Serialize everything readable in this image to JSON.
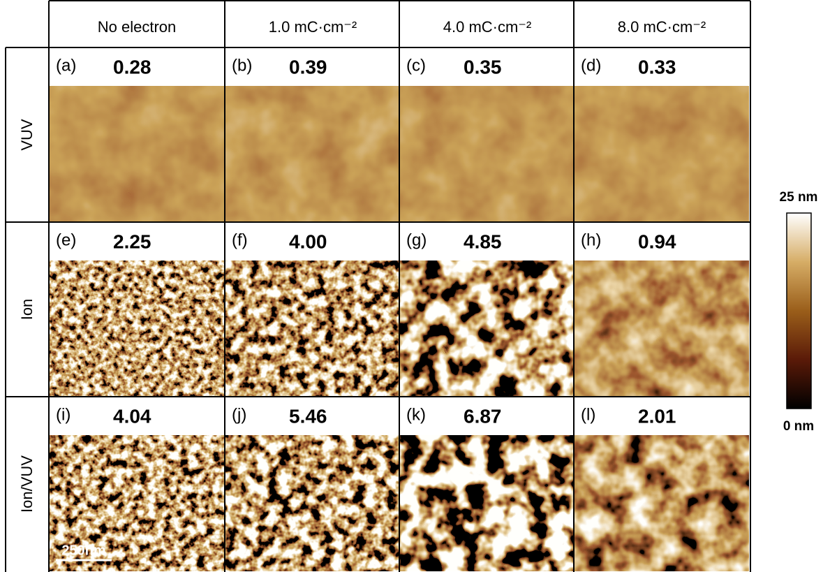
{
  "columns": [
    "No electron",
    "1.0 mC·cm⁻²",
    "4.0 mC·cm⁻²",
    "8.0 mC·cm⁻²"
  ],
  "rows": [
    {
      "label": "VUV",
      "panels": [
        {
          "label": "(a)",
          "value": "0.28"
        },
        {
          "label": "(b)",
          "value": "0.39"
        },
        {
          "label": "(c)",
          "value": "0.35"
        },
        {
          "label": "(d)",
          "value": "0.33"
        }
      ]
    },
    {
      "label": "Ion",
      "panels": [
        {
          "label": "(e)",
          "value": "2.25"
        },
        {
          "label": "(f)",
          "value": "4.00"
        },
        {
          "label": "(g)",
          "value": "4.85"
        },
        {
          "label": "(h)",
          "value": "0.94"
        }
      ]
    },
    {
      "label": "Ion/VUV",
      "panels": [
        {
          "label": "(i)",
          "value": "4.04"
        },
        {
          "label": "(j)",
          "value": "5.46"
        },
        {
          "label": "(k)",
          "value": "6.87"
        },
        {
          "label": "(l)",
          "value": "2.01"
        }
      ]
    }
  ],
  "colorbar": {
    "max_label": "25 nm",
    "min_label": "0 nm"
  },
  "scale_bar": "250nm"
}
